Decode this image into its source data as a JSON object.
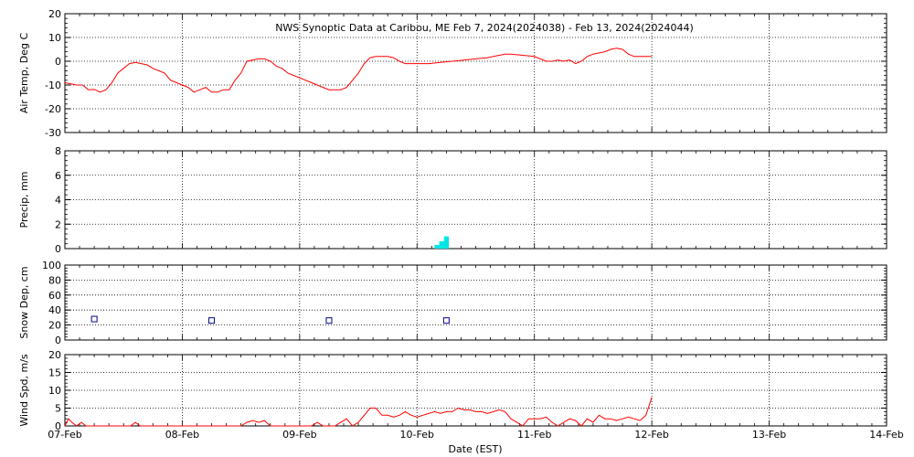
{
  "title": "NWS Synoptic Data at Caribou, ME   Feb  7, 2024(2024038) - Feb 13, 2024(2024044)",
  "xlabel": "Date (EST)",
  "x_ticks": [
    "07-Feb",
    "08-Feb",
    "09-Feb",
    "10-Feb",
    "11-Feb",
    "12-Feb",
    "13-Feb",
    "14-Feb"
  ],
  "colors": {
    "axes": "#000000",
    "line": "#ff0000",
    "precip": "#00e5e5",
    "snow": "#00008b"
  },
  "chart_data": [
    {
      "type": "line",
      "ylabel": "Air Temp, Deg C",
      "ylim": [
        -30,
        20
      ],
      "yticks": [
        -30,
        -20,
        -10,
        0,
        10,
        20
      ],
      "xlim": [
        0,
        7
      ],
      "grid": true,
      "series": [
        {
          "color": "#ff0000",
          "x": [
            0.0,
            0.05,
            0.1,
            0.15,
            0.2,
            0.25,
            0.3,
            0.35,
            0.4,
            0.45,
            0.5,
            0.55,
            0.6,
            0.65,
            0.7,
            0.75,
            0.8,
            0.85,
            0.9,
            0.95,
            1.0,
            1.05,
            1.1,
            1.15,
            1.2,
            1.25,
            1.3,
            1.35,
            1.4,
            1.45,
            1.5,
            1.55,
            1.6,
            1.65,
            1.7,
            1.75,
            1.8,
            1.85,
            1.9,
            1.95,
            2.0,
            2.1,
            2.2,
            2.25,
            2.3,
            2.35,
            2.4,
            2.45,
            2.5,
            2.55,
            2.6,
            2.65,
            2.7,
            2.75,
            2.8,
            2.85,
            2.9,
            2.95,
            3.0,
            3.1,
            3.2,
            3.3,
            3.4,
            3.5,
            3.6,
            3.65,
            3.7,
            3.75,
            3.8,
            3.9,
            4.0,
            4.05,
            4.1,
            4.15,
            4.2,
            4.25,
            4.3,
            4.35,
            4.4,
            4.45,
            4.5,
            4.55,
            4.6,
            4.65,
            4.7,
            4.75,
            4.8,
            4.85,
            4.9,
            4.95,
            5.0
          ],
          "values": [
            -9,
            -9.5,
            -10,
            -10,
            -12,
            -11.8,
            -13,
            -12,
            -9,
            -5,
            -3,
            -1,
            -0.5,
            -1,
            -1.5,
            -3,
            -4,
            -5,
            -8,
            -9,
            -10,
            -11,
            -13,
            -12,
            -11,
            -13,
            -13,
            -12,
            -12,
            -8,
            -5,
            0,
            0.5,
            1,
            1,
            0,
            -2,
            -3,
            -5,
            -6,
            -7,
            -9,
            -11,
            -12,
            -12,
            -12,
            -11,
            -8,
            -5,
            -1,
            1.5,
            2,
            2,
            2,
            1.5,
            0,
            -1,
            -1,
            -1,
            -1,
            -0.5,
            0,
            0.5,
            1,
            1.5,
            2,
            2.5,
            3,
            3,
            2.5,
            2,
            1,
            0,
            0,
            0.5,
            0,
            0.5,
            -1,
            0,
            2,
            3,
            3.5,
            4,
            5,
            5.5,
            5,
            3,
            2,
            2,
            2,
            2
          ]
        }
      ]
    },
    {
      "type": "bar",
      "ylabel": "Precip, mm",
      "ylim": [
        0,
        8
      ],
      "yticks": [
        0,
        2,
        4,
        6,
        8
      ],
      "xlim": [
        0,
        7
      ],
      "grid": true,
      "x": [
        3.17,
        3.21,
        3.25
      ],
      "values": [
        0.3,
        0.6,
        1.0
      ]
    },
    {
      "type": "scatter",
      "ylabel": "Snow Dep, cm",
      "ylim": [
        0,
        100
      ],
      "yticks": [
        0,
        20,
        40,
        60,
        80,
        100
      ],
      "xlim": [
        0,
        7
      ],
      "grid": true,
      "x": [
        0.25,
        1.25,
        2.25,
        3.25
      ],
      "values": [
        28,
        26,
        26,
        26
      ]
    },
    {
      "type": "line",
      "ylabel": "Wind Spd, m/s",
      "ylim": [
        0,
        20
      ],
      "yticks": [
        0,
        5,
        10,
        15,
        20
      ],
      "xlim": [
        0,
        7
      ],
      "grid": true,
      "series": [
        {
          "color": "#ff0000",
          "x": [
            0.0,
            0.03,
            0.06,
            0.1,
            0.14,
            0.18,
            0.22,
            0.26,
            0.3,
            0.4,
            0.5,
            0.56,
            0.6,
            0.64,
            0.7,
            0.8,
            0.9,
            1.0,
            1.1,
            1.2,
            1.3,
            1.4,
            1.5,
            1.55,
            1.6,
            1.65,
            1.7,
            1.75,
            1.8,
            1.9,
            2.0,
            2.1,
            2.15,
            2.2,
            2.25,
            2.3,
            2.4,
            2.45,
            2.5,
            2.55,
            2.6,
            2.65,
            2.7,
            2.75,
            2.8,
            2.85,
            2.9,
            2.95,
            3.0,
            3.05,
            3.1,
            3.15,
            3.2,
            3.25,
            3.3,
            3.35,
            3.4,
            3.45,
            3.5,
            3.55,
            3.6,
            3.65,
            3.7,
            3.75,
            3.8,
            3.85,
            3.9,
            3.95,
            4.0,
            4.05,
            4.1,
            4.15,
            4.2,
            4.25,
            4.3,
            4.35,
            4.4,
            4.45,
            4.5,
            4.55,
            4.6,
            4.65,
            4.7,
            4.75,
            4.8,
            4.85,
            4.9,
            4.95,
            5.0
          ],
          "values": [
            0,
            2,
            1,
            0,
            1,
            0,
            0,
            0,
            0,
            0,
            0,
            0,
            1,
            0,
            0,
            0,
            0,
            0,
            0,
            0,
            0,
            0,
            0,
            1,
            1.5,
            1,
            1.5,
            0,
            0,
            0,
            0,
            0,
            1,
            0,
            0,
            0,
            2,
            0,
            1,
            3,
            5,
            5,
            3,
            3,
            2.5,
            3,
            4,
            3,
            2.5,
            3,
            3.5,
            4,
            3.5,
            4,
            4,
            5,
            4.5,
            4.5,
            4,
            4,
            3.5,
            4,
            4.5,
            4,
            2,
            1,
            0,
            2,
            2,
            2,
            2.5,
            1,
            0,
            1,
            2,
            1.5,
            0,
            2,
            1,
            3,
            2,
            2,
            1.5,
            2,
            2.5,
            2,
            1.5,
            3,
            8
          ]
        }
      ]
    }
  ]
}
